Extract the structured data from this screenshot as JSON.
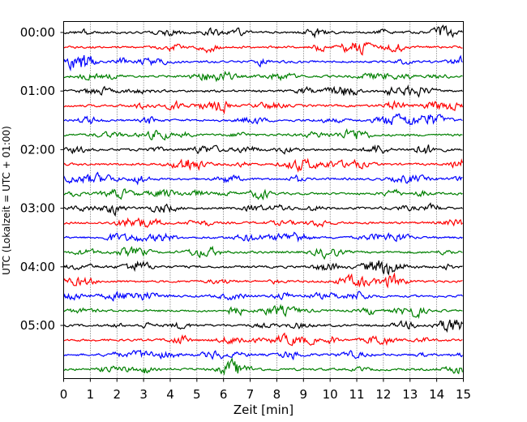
{
  "chart_data": {
    "type": "line",
    "title": "",
    "xlabel": "Zeit  [min]",
    "ylabel": "UTC (Lokalzeit = UTC + 01:00)",
    "xlim": [
      0,
      15
    ],
    "x_ticks": [
      "0",
      "1",
      "2",
      "3",
      "4",
      "5",
      "6",
      "7",
      "8",
      "9",
      "10",
      "11",
      "12",
      "13",
      "14",
      "15"
    ],
    "y_tick_labels": [
      "00:00",
      "01:00",
      "02:00",
      "03:00",
      "04:00",
      "05:00"
    ],
    "trace_count": 24,
    "trace_interval_minutes": 15,
    "trace_colors": [
      "#000000",
      "#ff0000",
      "#0000ff",
      "#008000"
    ],
    "grid": "vertical dotted",
    "axis_color": "#000000"
  }
}
